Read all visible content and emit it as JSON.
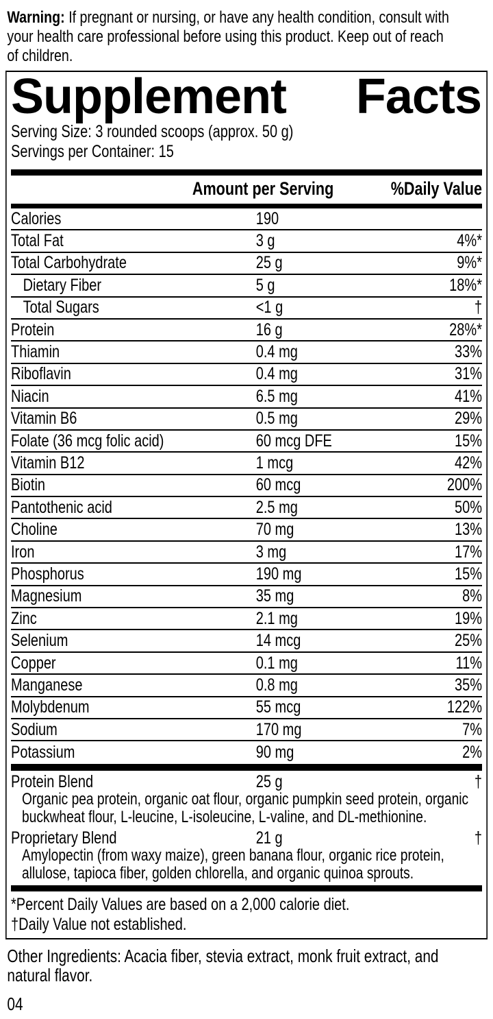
{
  "colors": {
    "background": "#ffffff",
    "text": "#000000",
    "rule": "#000000"
  },
  "warning": {
    "label": "Warning:",
    "lines": [
      "If pregnant or nursing, or have any health condition, consult with",
      "your health care professional before using this product. Keep out of reach",
      "of children."
    ]
  },
  "panel": {
    "title_left": "Supplement",
    "title_right": "Facts",
    "serving_size": "Serving Size: 3 rounded scoops (approx. 50 g)",
    "servings_per_container": "Servings per Container: 15",
    "columns": {
      "amount": "Amount per Serving",
      "daily_value": "%Daily Value"
    },
    "rows": [
      {
        "label": "Calories",
        "amount": "190",
        "dv": "",
        "indent": false
      },
      {
        "label": "Total Fat",
        "amount": "3 g",
        "dv": "4%*",
        "indent": false
      },
      {
        "label": "Total Carbohydrate",
        "amount": "25 g",
        "dv": "9%*",
        "indent": false
      },
      {
        "label": "Dietary Fiber",
        "amount": "5 g",
        "dv": "18%*",
        "indent": true
      },
      {
        "label": "Total Sugars",
        "amount": "<1 g",
        "dv": "†",
        "indent": true
      },
      {
        "label": "Protein",
        "amount": "16 g",
        "dv": "28%*",
        "indent": false
      },
      {
        "label": "Thiamin",
        "amount": "0.4 mg",
        "dv": "33%",
        "indent": false
      },
      {
        "label": "Riboflavin",
        "amount": "0.4 mg",
        "dv": "31%",
        "indent": false
      },
      {
        "label": "Niacin",
        "amount": "6.5 mg",
        "dv": "41%",
        "indent": false
      },
      {
        "label": "Vitamin B6",
        "amount": "0.5 mg",
        "dv": "29%",
        "indent": false
      },
      {
        "label": "Folate (36 mcg folic acid)",
        "amount": "60 mcg DFE",
        "dv": "15%",
        "indent": false
      },
      {
        "label": "Vitamin B12",
        "amount": "1 mcg",
        "dv": "42%",
        "indent": false
      },
      {
        "label": "Biotin",
        "amount": "60 mcg",
        "dv": "200%",
        "indent": false
      },
      {
        "label": "Pantothenic acid",
        "amount": "2.5 mg",
        "dv": "50%",
        "indent": false
      },
      {
        "label": "Choline",
        "amount": "70 mg",
        "dv": "13%",
        "indent": false
      },
      {
        "label": "Iron",
        "amount": "3 mg",
        "dv": "17%",
        "indent": false
      },
      {
        "label": "Phosphorus",
        "amount": "190 mg",
        "dv": "15%",
        "indent": false
      },
      {
        "label": "Magnesium",
        "amount": "35 mg",
        "dv": "8%",
        "indent": false
      },
      {
        "label": "Zinc",
        "amount": "2.1 mg",
        "dv": "19%",
        "indent": false
      },
      {
        "label": "Selenium",
        "amount": "14 mcg",
        "dv": "25%",
        "indent": false
      },
      {
        "label": "Copper",
        "amount": "0.1 mg",
        "dv": "11%",
        "indent": false
      },
      {
        "label": "Manganese",
        "amount": "0.8 mg",
        "dv": "35%",
        "indent": false
      },
      {
        "label": "Molybdenum",
        "amount": "55 mcg",
        "dv": "122%",
        "indent": false
      },
      {
        "label": "Sodium",
        "amount": "170 mg",
        "dv": "7%",
        "indent": false
      },
      {
        "label": "Potassium",
        "amount": "90 mg",
        "dv": "2%",
        "indent": false
      }
    ],
    "blends": [
      {
        "label": "Protein Blend",
        "amount": "25 g",
        "dv": "†",
        "description_lines": [
          "Organic pea protein, organic oat flour, organic pumpkin seed protein, organic",
          "buckwheat flour, L-leucine, L-isoleucine, L-valine, and DL-methionine."
        ]
      },
      {
        "label": "Proprietary Blend",
        "amount": "21 g",
        "dv": "†",
        "description_lines": [
          "Amylopectin (from waxy maize), green banana flour, organic rice protein,",
          "allulose, tapioca fiber, golden chlorella, and organic quinoa sprouts."
        ]
      }
    ],
    "footnotes": [
      "*Percent Daily Values are based on a 2,000 calorie diet.",
      "†Daily Value not established."
    ]
  },
  "other_ingredients_lines": [
    "Other Ingredients: Acacia fiber, stevia extract, monk fruit extract, and",
    "natural flavor."
  ],
  "page_number": "04"
}
